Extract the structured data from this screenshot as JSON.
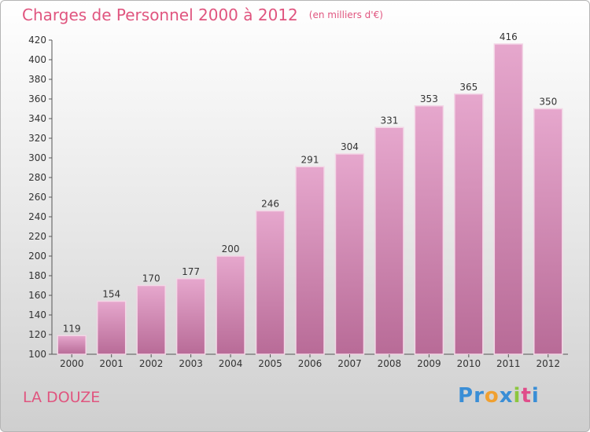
{
  "header": {
    "title": "Charges de Personnel 2000 à 2012",
    "unit": "(en milliers d'€)"
  },
  "footer": {
    "place": "LA DOUZE"
  },
  "logo": {
    "text": "Proxiti",
    "letters": [
      {
        "ch": "P",
        "color": "#3a8ed6"
      },
      {
        "ch": "r",
        "color": "#3a8ed6"
      },
      {
        "ch": "o",
        "color": "#f0a030"
      },
      {
        "ch": "x",
        "color": "#3a8ed6"
      },
      {
        "ch": "i",
        "color": "#8cc63f"
      },
      {
        "ch": "t",
        "color": "#e04d8a"
      },
      {
        "ch": "i",
        "color": "#3a8ed6"
      }
    ]
  },
  "colors": {
    "bar_top": "#e6a7cd",
    "bar_bottom": "#b86b97",
    "title": "#e0557f"
  },
  "chart_data": {
    "type": "bar",
    "title": "Charges de Personnel 2000 à 2012",
    "subtitle": "(en milliers d'€)",
    "categories": [
      "2000",
      "2001",
      "2002",
      "2003",
      "2004",
      "2005",
      "2006",
      "2007",
      "2008",
      "2009",
      "2010",
      "2011",
      "2012"
    ],
    "values": [
      119,
      154,
      170,
      177,
      200,
      246,
      291,
      304,
      331,
      353,
      365,
      416,
      350
    ],
    "ylim": [
      100,
      420
    ],
    "yticks": [
      100,
      120,
      140,
      160,
      180,
      200,
      220,
      240,
      260,
      280,
      300,
      320,
      340,
      360,
      380,
      400,
      420
    ],
    "grid": false
  }
}
